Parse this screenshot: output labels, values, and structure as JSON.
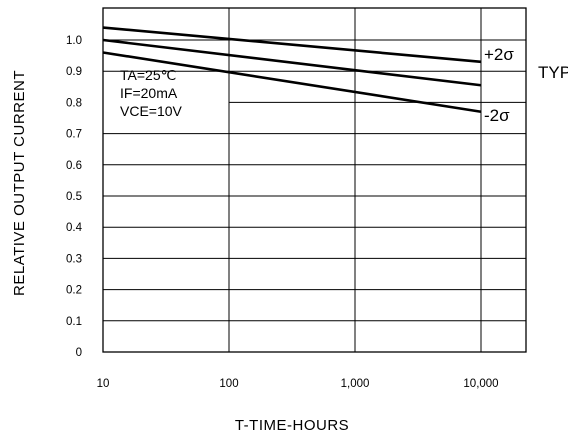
{
  "chart_data": {
    "type": "line",
    "xlabel": "T-TIME-HOURS",
    "ylabel": "RELATIVE OUTPUT CURRENT",
    "x_scale": "log",
    "xlim": [
      10,
      10000
    ],
    "ylim": [
      0,
      1.0
    ],
    "x_ticks": [
      10,
      100,
      1000,
      10000
    ],
    "x_tick_labels": [
      "10",
      "100",
      "1,000",
      "10,000"
    ],
    "y_ticks": [
      0,
      0.1,
      0.2,
      0.3,
      0.4,
      0.5,
      0.6,
      0.7,
      0.8,
      0.9,
      1.0
    ],
    "y_tick_labels": [
      "0",
      "0.1",
      "0.2",
      "0.3",
      "0.4",
      "0.5",
      "0.6",
      "0.7",
      "0.8",
      "0.9",
      "1.0"
    ],
    "grid": true,
    "conditions": [
      "TA=25℃",
      "IF=20mA",
      "VCE=10V"
    ],
    "series": [
      {
        "name": "+2σ",
        "x": [
          10,
          10000
        ],
        "y": [
          1.04,
          0.93
        ]
      },
      {
        "name": "TYP",
        "x": [
          10,
          10000
        ],
        "y": [
          1.0,
          0.855
        ]
      },
      {
        "name": "-2σ",
        "x": [
          10,
          10000
        ],
        "y": [
          0.96,
          0.77
        ]
      }
    ]
  }
}
